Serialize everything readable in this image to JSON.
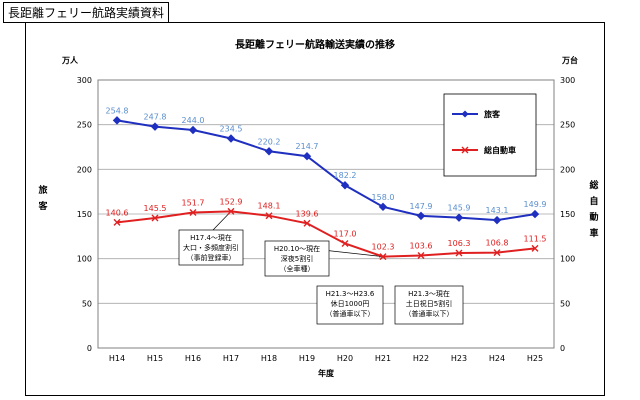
{
  "page": {
    "title": "長距離フェリー航路実績資料"
  },
  "chart_data": {
    "type": "line",
    "title": "長距離フェリー航路輸送実績の推移",
    "xlabel": "年度",
    "ylabel_left": "旅客",
    "ylabel_right": "総自動車",
    "unit_left": "万人",
    "unit_right": "万台",
    "categories": [
      "H14",
      "H15",
      "H16",
      "H17",
      "H18",
      "H19",
      "H20",
      "H21",
      "H22",
      "H23",
      "H24",
      "H25"
    ],
    "ylim": [
      0,
      300
    ],
    "y_ticks": [
      "0",
      "50",
      "100",
      "150",
      "200",
      "250",
      "300"
    ],
    "grid": true,
    "legend_position": "top-right",
    "series": [
      {
        "name": "旅客",
        "color": "#1f2fbf",
        "marker": "diamond",
        "values": [
          254.8,
          247.8,
          244.0,
          234.5,
          220.2,
          214.7,
          182.2,
          158.0,
          147.9,
          145.9,
          143.1,
          149.9
        ],
        "labels": [
          "254.8",
          "247.8",
          "244.0",
          "234.5",
          "220.2",
          "214.7",
          "182.2",
          "158.0",
          "147.9",
          "145.9",
          "143.1",
          "149.9"
        ]
      },
      {
        "name": "総自動車",
        "color": "#e02020",
        "marker": "x",
        "values": [
          140.6,
          145.5,
          151.7,
          152.9,
          148.1,
          139.6,
          117.0,
          102.3,
          103.6,
          106.3,
          106.8,
          111.5
        ],
        "labels": [
          "140.6",
          "145.5",
          "151.7",
          "152.9",
          "148.1",
          "139.6",
          "117.0",
          "102.3",
          "103.6",
          "106.3",
          "106.8",
          "111.5"
        ]
      }
    ],
    "annotations": [
      {
        "lines": [
          "H17.4～現在",
          "大口・多頻度割引",
          "（事前登録車）"
        ],
        "target_index": 3
      },
      {
        "lines": [
          "H20.10～現在",
          "深夜5割引",
          "（全車種）"
        ],
        "target_index": 7
      },
      {
        "lines": [
          "H21.3～H23.6",
          "休日1000円",
          "（普通車以下）"
        ],
        "target_index": 7
      },
      {
        "lines": [
          "H21.3～現在",
          "土日祝日5割引",
          "（普通車以下）"
        ],
        "target_index": 7
      }
    ]
  }
}
